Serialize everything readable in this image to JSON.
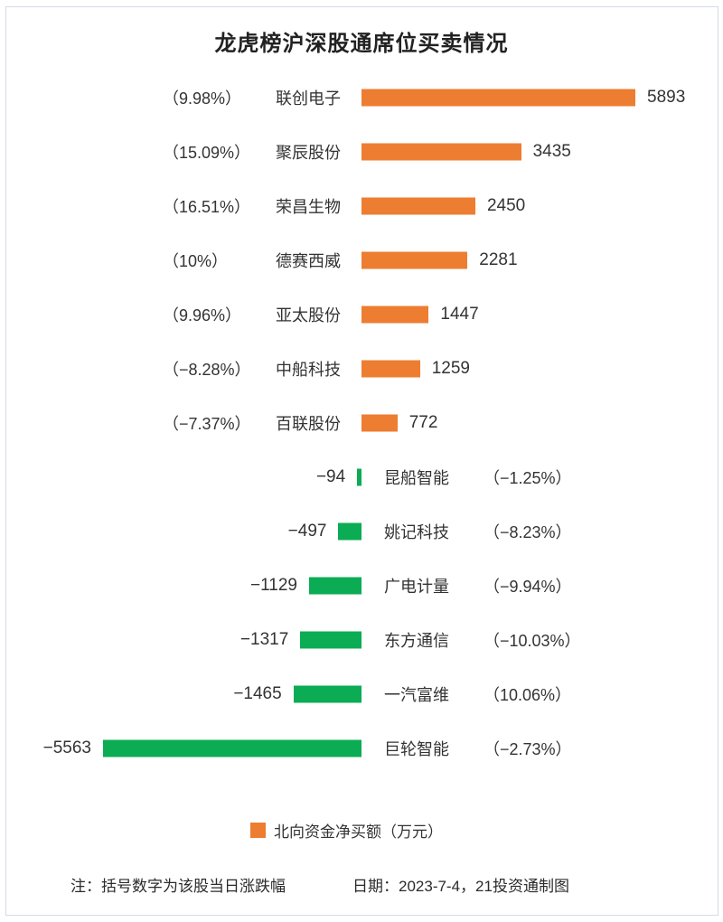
{
  "title": "龙虎榜沪深股通席位买卖情况",
  "colors": {
    "positive": "#ED7D31",
    "negative": "#0BAC54",
    "text": "#333333"
  },
  "chart_data": {
    "type": "bar",
    "orientation": "horizontal",
    "title": "龙虎榜沪深股通席位买卖情况",
    "value_unit": "万元",
    "xlim": [
      -5893,
      5893
    ],
    "categories": [
      "联创电子",
      "聚辰股份",
      "荣昌生物",
      "德赛西威",
      "亚太股份",
      "中船科技",
      "百联股份",
      "昆船智能",
      "姚记科技",
      "广电计量",
      "东方通信",
      "一汽富维",
      "巨轮智能"
    ],
    "values": [
      5893,
      3435,
      2450,
      2281,
      1447,
      1259,
      772,
      -94,
      -497,
      -1129,
      -1317,
      -1465,
      -5563
    ],
    "pct_change_labels": [
      "（9.98%）",
      "（15.09%）",
      "（16.51%）",
      "（10%）",
      "（9.96%）",
      "（−8.28%）",
      "（−7.37%）",
      "（−1.25%）",
      "（−8.23%）",
      "（−9.94%）",
      "（−10.03%）",
      "（10.06%）",
      "（−2.73%）"
    ],
    "rows": [
      {
        "pct_label": "（9.98%）",
        "name": "联创电子",
        "value": 5893,
        "value_label": "5893"
      },
      {
        "pct_label": "（15.09%）",
        "name": "聚辰股份",
        "value": 3435,
        "value_label": "3435"
      },
      {
        "pct_label": "（16.51%）",
        "name": "荣昌生物",
        "value": 2450,
        "value_label": "2450"
      },
      {
        "pct_label": "（10%）",
        "name": "德赛西威",
        "value": 2281,
        "value_label": "2281"
      },
      {
        "pct_label": "（9.96%）",
        "name": "亚太股份",
        "value": 1447,
        "value_label": "1447"
      },
      {
        "pct_label": "（−8.28%）",
        "name": "中船科技",
        "value": 1259,
        "value_label": "1259"
      },
      {
        "pct_label": "（−7.37%）",
        "name": "百联股份",
        "value": 772,
        "value_label": "772"
      },
      {
        "pct_label": "（−1.25%）",
        "name": "昆船智能",
        "value": -94,
        "value_label": "−94"
      },
      {
        "pct_label": "（−8.23%）",
        "name": "姚记科技",
        "value": -497,
        "value_label": "−497"
      },
      {
        "pct_label": "（−9.94%）",
        "name": "广电计量",
        "value": -1129,
        "value_label": "−1129"
      },
      {
        "pct_label": "（−10.03%）",
        "name": "东方通信",
        "value": -1317,
        "value_label": "−1317"
      },
      {
        "pct_label": "（10.06%）",
        "name": "一汽富维",
        "value": -1465,
        "value_label": "−1465"
      },
      {
        "pct_label": "（−2.73%）",
        "name": "巨轮智能",
        "value": -5563,
        "value_label": "−5563"
      }
    ],
    "legend_position": "bottom-center",
    "grid": false
  },
  "legend": {
    "label": "北向资金净买额（万元）"
  },
  "footer": {
    "note": "注：括号数字为该股当日涨跌幅",
    "date": "日期：2023-7-4，21投资通制图"
  }
}
